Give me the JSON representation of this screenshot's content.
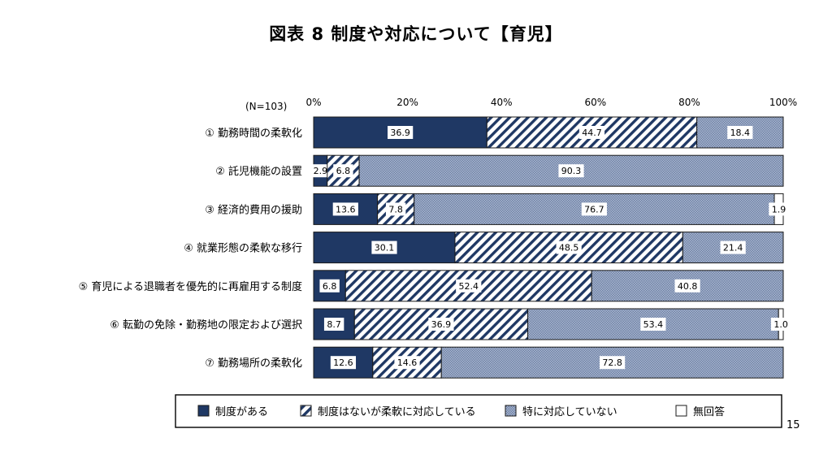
{
  "title": "図表 8 制度や対応について【育児】",
  "n_label": "(N=103)",
  "page_number": "15",
  "chart_data": {
    "type": "bar",
    "orientation": "horizontal",
    "stacked": true,
    "unit": "percent",
    "xlim": [
      0,
      100
    ],
    "ticks": [
      "0%",
      "20%",
      "40%",
      "60%",
      "80%",
      "100%"
    ],
    "tick_values": [
      0,
      20,
      40,
      60,
      80,
      100
    ],
    "categories": [
      "① 勤務時間の柔軟化",
      "② 託児機能の設置",
      "③ 経済的費用の援助",
      "④ 就業形態の柔軟な移行",
      "⑤ 育児による退職者を優先的に再雇用する制度",
      "⑥ 転勤の免除・勤務地の限定および選択",
      "⑦ 勤務場所の柔軟化"
    ],
    "series": [
      {
        "name": "制度がある",
        "color": "#1f3864",
        "pattern": "solid",
        "values": [
          36.9,
          2.9,
          13.6,
          30.1,
          6.8,
          8.7,
          12.6
        ],
        "labels": [
          "36.9",
          "2.9",
          "13.6",
          "30.1",
          "6.8",
          "8.7",
          "12.6"
        ]
      },
      {
        "name": "制度はないが柔軟に対応している",
        "color": "#1f3864",
        "pattern": "diagonal",
        "values": [
          44.7,
          6.8,
          7.8,
          48.5,
          52.4,
          36.9,
          14.6
        ],
        "labels": [
          "44.7",
          "6.8",
          "7.8",
          "48.5",
          "52.4",
          "36.9",
          "14.6"
        ]
      },
      {
        "name": "特に対応していない",
        "color": "#8e9fbd",
        "pattern": "dotted",
        "values": [
          18.4,
          90.3,
          76.7,
          21.4,
          40.8,
          53.4,
          72.8
        ],
        "labels": [
          "18.4",
          "90.3",
          "76.7",
          "21.4",
          "40.8",
          "53.4",
          "72.8"
        ]
      },
      {
        "name": "無回答",
        "color": "#ffffff",
        "pattern": "none",
        "values": [
          0,
          0,
          1.9,
          0,
          0,
          1.0,
          0
        ],
        "labels": [
          "",
          "",
          "1.9",
          "",
          "",
          "1.0",
          ""
        ]
      }
    ]
  }
}
